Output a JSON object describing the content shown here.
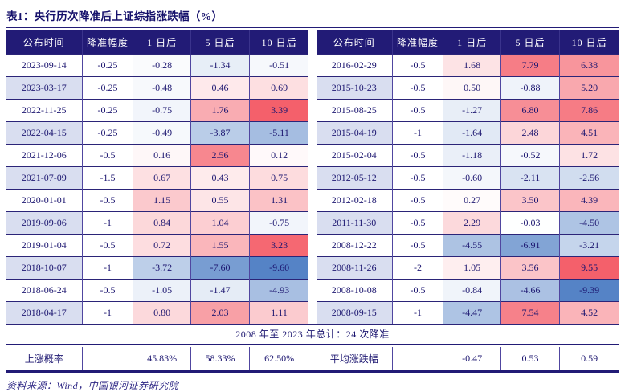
{
  "title": "表1：央行历次降准后上证综指涨跌幅（%）",
  "columns": [
    "公布时间",
    "降准幅度",
    "1 日后",
    "5 日后",
    "10 日后"
  ],
  "left_table": {
    "rows": [
      [
        "2023-09-14",
        "-0.25",
        "-0.28",
        "-1.34",
        "-0.51"
      ],
      [
        "2023-03-17",
        "-0.25",
        "-0.48",
        "0.46",
        "0.69"
      ],
      [
        "2022-11-25",
        "-0.25",
        "-0.75",
        "1.76",
        "3.39"
      ],
      [
        "2022-04-15",
        "-0.25",
        "-0.49",
        "-3.87",
        "-5.11"
      ],
      [
        "2021-12-06",
        "-0.5",
        "0.16",
        "2.56",
        "0.12"
      ],
      [
        "2021-07-09",
        "-1.5",
        "0.67",
        "0.43",
        "0.75"
      ],
      [
        "2020-01-01",
        "-0.5",
        "1.15",
        "0.55",
        "1.31"
      ],
      [
        "2019-09-06",
        "-1",
        "0.84",
        "1.04",
        "-0.75"
      ],
      [
        "2019-01-04",
        "-0.5",
        "0.72",
        "1.55",
        "3.23"
      ],
      [
        "2018-10-07",
        "-1",
        "-3.72",
        "-7.60",
        "-9.60"
      ],
      [
        "2018-06-24",
        "-0.5",
        "-1.05",
        "-1.47",
        "-4.93"
      ],
      [
        "2018-04-17",
        "-1",
        "0.80",
        "2.03",
        "1.11"
      ]
    ]
  },
  "right_table": {
    "rows": [
      [
        "2016-02-29",
        "-0.5",
        "1.68",
        "7.79",
        "6.38"
      ],
      [
        "2015-10-23",
        "-0.5",
        "0.50",
        "-0.88",
        "5.20"
      ],
      [
        "2015-08-25",
        "-0.5",
        "-1.27",
        "6.80",
        "7.86"
      ],
      [
        "2015-04-19",
        "-1",
        "-1.64",
        "2.48",
        "4.51"
      ],
      [
        "2015-02-04",
        "-0.5",
        "-1.18",
        "-0.52",
        "1.72"
      ],
      [
        "2012-05-12",
        "-0.5",
        "-0.60",
        "-2.11",
        "-2.56"
      ],
      [
        "2012-02-18",
        "-0.5",
        "0.27",
        "3.50",
        "4.39"
      ],
      [
        "2011-11-30",
        "-0.5",
        "2.29",
        "-0.03",
        "-4.50"
      ],
      [
        "2008-12-22",
        "-0.5",
        "-4.55",
        "-6.91",
        "-3.21"
      ],
      [
        "2008-11-26",
        "-2",
        "1.05",
        "3.56",
        "9.55"
      ],
      [
        "2008-10-08",
        "-0.5",
        "-0.84",
        "-4.66",
        "-9.39"
      ],
      [
        "2008-09-15",
        "-1",
        "-4.47",
        "7.54",
        "4.52"
      ]
    ]
  },
  "summary": "2008 年至 2023 年总计：24 次降准",
  "stats": {
    "left_label": "上涨概率",
    "left_values": [
      "45.83%",
      "58.33%",
      "62.50%"
    ],
    "right_label": "平均涨跌幅",
    "right_values": [
      "-0.47",
      "0.53",
      "0.59"
    ]
  },
  "source": "资料来源：Wind，中国银河证券研究院",
  "colors": {
    "header_bg": "#221b76",
    "text": "#1c1670",
    "stripe": "#d9def0",
    "positive_max": "#f4606b",
    "negative_max": "#5583c6",
    "row_border": "#2b2478",
    "col_border": "#5046a0"
  }
}
